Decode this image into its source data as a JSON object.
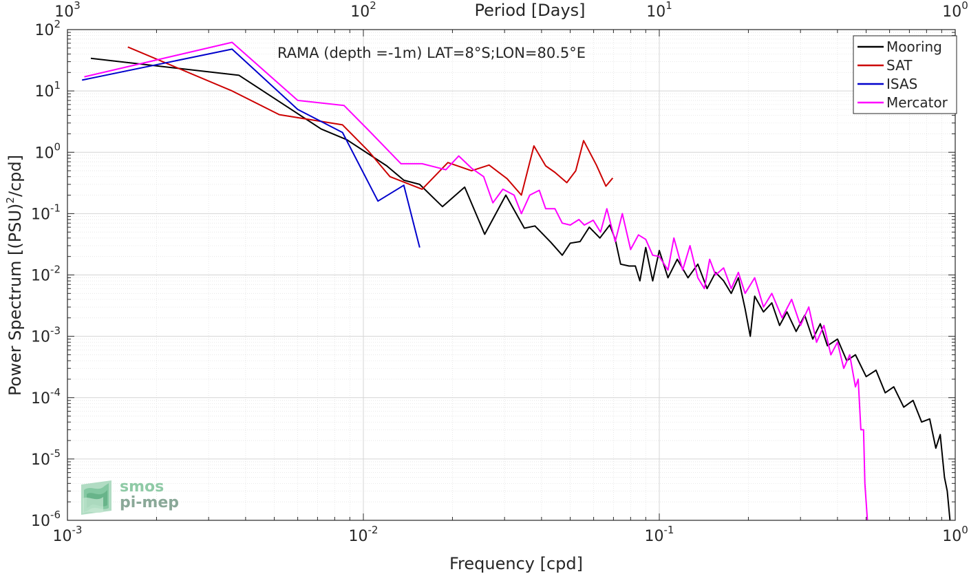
{
  "chart_data": {
    "type": "line",
    "title": "RAMA (depth =-1m) LAT=8°S;LON=80.5°E",
    "xlabel": "Frequency [cpd]",
    "ylabel": "Power Spectrum [(PSU)²/cpd]",
    "ylabel_main": "Power Spectrum [(PSU)",
    "ylabel_sup": "2",
    "ylabel_tail": "/cpd]",
    "top_xlabel": "Period [Days]",
    "xscale": "log",
    "yscale": "log",
    "xlim": [
      0.001,
      1
    ],
    "ylim": [
      1e-06,
      100
    ],
    "grid": true,
    "legend_position": "top-right",
    "x_ticks": [
      {
        "value": 0.001,
        "base": "10",
        "exp": "-3"
      },
      {
        "value": 0.01,
        "base": "10",
        "exp": "-2"
      },
      {
        "value": 0.1,
        "base": "10",
        "exp": "-1"
      },
      {
        "value": 1,
        "base": "10",
        "exp": "0"
      }
    ],
    "top_ticks": [
      {
        "value": 0.001,
        "base": "10",
        "exp": "3"
      },
      {
        "value": 0.01,
        "base": "10",
        "exp": "2"
      },
      {
        "value": 0.1,
        "base": "10",
        "exp": "1"
      },
      {
        "value": 1,
        "base": "10",
        "exp": "0"
      }
    ],
    "y_ticks": [
      {
        "value": 100,
        "base": "10",
        "exp": "2"
      },
      {
        "value": 10,
        "base": "10",
        "exp": "1"
      },
      {
        "value": 1,
        "base": "10",
        "exp": "0"
      },
      {
        "value": 0.1,
        "base": "10",
        "exp": "-1"
      },
      {
        "value": 0.01,
        "base": "10",
        "exp": "-2"
      },
      {
        "value": 0.001,
        "base": "10",
        "exp": "-3"
      },
      {
        "value": 0.0001,
        "base": "10",
        "exp": "-4"
      },
      {
        "value": 1e-05,
        "base": "10",
        "exp": "-5"
      },
      {
        "value": 1e-06,
        "base": "10",
        "exp": "-6"
      }
    ],
    "series": [
      {
        "name": "Mooring",
        "color": "#000000",
        "points": [
          [
            0.0012,
            34
          ],
          [
            0.0038,
            18
          ],
          [
            0.0072,
            2.4
          ],
          [
            0.0088,
            1.6
          ],
          [
            0.012,
            0.6
          ],
          [
            0.0137,
            0.35
          ],
          [
            0.0155,
            0.3
          ],
          [
            0.0185,
            0.13
          ],
          [
            0.022,
            0.27
          ],
          [
            0.0257,
            0.046
          ],
          [
            0.0303,
            0.2
          ],
          [
            0.035,
            0.058
          ],
          [
            0.038,
            0.063
          ],
          [
            0.043,
            0.034
          ],
          [
            0.047,
            0.021
          ],
          [
            0.05,
            0.033
          ],
          [
            0.054,
            0.035
          ],
          [
            0.058,
            0.06
          ],
          [
            0.063,
            0.04
          ],
          [
            0.068,
            0.065
          ],
          [
            0.071,
            0.038
          ],
          [
            0.074,
            0.015
          ],
          [
            0.079,
            0.014
          ],
          [
            0.083,
            0.014
          ],
          [
            0.086,
            0.008
          ],
          [
            0.09,
            0.028
          ],
          [
            0.095,
            0.008
          ],
          [
            0.1,
            0.025
          ],
          [
            0.107,
            0.009
          ],
          [
            0.115,
            0.018
          ],
          [
            0.125,
            0.009
          ],
          [
            0.135,
            0.015
          ],
          [
            0.145,
            0.006
          ],
          [
            0.155,
            0.011
          ],
          [
            0.165,
            0.008
          ],
          [
            0.175,
            0.005
          ],
          [
            0.185,
            0.009
          ],
          [
            0.195,
            0.0028
          ],
          [
            0.203,
            0.001
          ],
          [
            0.21,
            0.0045
          ],
          [
            0.225,
            0.0025
          ],
          [
            0.24,
            0.0035
          ],
          [
            0.255,
            0.0015
          ],
          [
            0.27,
            0.0025
          ],
          [
            0.29,
            0.0012
          ],
          [
            0.31,
            0.0022
          ],
          [
            0.33,
            0.0009
          ],
          [
            0.35,
            0.0016
          ],
          [
            0.37,
            0.0007
          ],
          [
            0.4,
            0.0009
          ],
          [
            0.43,
            0.0004
          ],
          [
            0.46,
            0.0005
          ],
          [
            0.5,
            0.00022
          ],
          [
            0.54,
            0.00028
          ],
          [
            0.58,
            0.00012
          ],
          [
            0.62,
            0.00015
          ],
          [
            0.67,
            7e-05
          ],
          [
            0.72,
            9e-05
          ],
          [
            0.77,
            4e-05
          ],
          [
            0.82,
            4.5e-05
          ],
          [
            0.86,
            1.5e-05
          ],
          [
            0.89,
            2.5e-05
          ],
          [
            0.92,
            5e-06
          ],
          [
            0.94,
            3e-06
          ],
          [
            0.96,
            1e-06
          ]
        ]
      },
      {
        "name": "SAT",
        "color": "#cc0000",
        "points": [
          [
            0.0016,
            52
          ],
          [
            0.0036,
            10
          ],
          [
            0.0052,
            4.1
          ],
          [
            0.0085,
            2.8
          ],
          [
            0.0104,
            1.05
          ],
          [
            0.0123,
            0.4
          ],
          [
            0.0158,
            0.25
          ],
          [
            0.0193,
            0.68
          ],
          [
            0.0232,
            0.5
          ],
          [
            0.0266,
            0.62
          ],
          [
            0.0306,
            0.37
          ],
          [
            0.0342,
            0.2
          ],
          [
            0.0377,
            1.27
          ],
          [
            0.0413,
            0.6
          ],
          [
            0.0444,
            0.47
          ],
          [
            0.0487,
            0.32
          ],
          [
            0.0522,
            0.5
          ],
          [
            0.0555,
            1.55
          ],
          [
            0.0613,
            0.62
          ],
          [
            0.066,
            0.28
          ],
          [
            0.0696,
            0.38
          ]
        ]
      },
      {
        "name": "ISAS",
        "color": "#0000cc",
        "points": [
          [
            0.00112,
            15
          ],
          [
            0.0036,
            48
          ],
          [
            0.006,
            5
          ],
          [
            0.0085,
            2.1
          ],
          [
            0.0112,
            0.16
          ],
          [
            0.0137,
            0.29
          ],
          [
            0.0155,
            0.028
          ]
        ]
      },
      {
        "name": "Mercator",
        "color": "#ff00ff",
        "points": [
          [
            0.00114,
            17
          ],
          [
            0.0036,
            62
          ],
          [
            0.006,
            7
          ],
          [
            0.0086,
            5.8
          ],
          [
            0.0104,
            2.3
          ],
          [
            0.0134,
            0.65
          ],
          [
            0.0158,
            0.65
          ],
          [
            0.019,
            0.52
          ],
          [
            0.021,
            0.87
          ],
          [
            0.0232,
            0.55
          ],
          [
            0.0255,
            0.4
          ],
          [
            0.0274,
            0.15
          ],
          [
            0.0296,
            0.25
          ],
          [
            0.0323,
            0.2
          ],
          [
            0.0342,
            0.1
          ],
          [
            0.0365,
            0.2
          ],
          [
            0.0393,
            0.24
          ],
          [
            0.0413,
            0.12
          ],
          [
            0.0444,
            0.12
          ],
          [
            0.047,
            0.07
          ],
          [
            0.05,
            0.065
          ],
          [
            0.0535,
            0.08
          ],
          [
            0.0558,
            0.065
          ],
          [
            0.0598,
            0.078
          ],
          [
            0.0633,
            0.05
          ],
          [
            0.0665,
            0.12
          ],
          [
            0.071,
            0.035
          ],
          [
            0.075,
            0.1
          ],
          [
            0.08,
            0.026
          ],
          [
            0.085,
            0.045
          ],
          [
            0.09,
            0.038
          ],
          [
            0.095,
            0.021
          ],
          [
            0.1,
            0.02
          ],
          [
            0.107,
            0.012
          ],
          [
            0.112,
            0.04
          ],
          [
            0.12,
            0.012
          ],
          [
            0.127,
            0.03
          ],
          [
            0.135,
            0.009
          ],
          [
            0.142,
            0.006
          ],
          [
            0.148,
            0.018
          ],
          [
            0.155,
            0.01
          ],
          [
            0.165,
            0.013
          ],
          [
            0.175,
            0.006
          ],
          [
            0.185,
            0.011
          ],
          [
            0.195,
            0.005
          ],
          [
            0.21,
            0.009
          ],
          [
            0.225,
            0.003
          ],
          [
            0.24,
            0.005
          ],
          [
            0.26,
            0.002
          ],
          [
            0.28,
            0.004
          ],
          [
            0.3,
            0.0015
          ],
          [
            0.32,
            0.003
          ],
          [
            0.34,
            0.0008
          ],
          [
            0.36,
            0.0015
          ],
          [
            0.38,
            0.0005
          ],
          [
            0.4,
            0.0008
          ],
          [
            0.42,
            0.0003
          ],
          [
            0.44,
            0.0005
          ],
          [
            0.46,
            0.00015
          ],
          [
            0.47,
            0.0002
          ],
          [
            0.48,
            3e-05
          ],
          [
            0.49,
            3e-05
          ],
          [
            0.495,
            4e-06
          ],
          [
            0.505,
            1e-06
          ]
        ]
      }
    ]
  },
  "logo": {
    "line1": "smos",
    "line2": "pi-mep"
  }
}
